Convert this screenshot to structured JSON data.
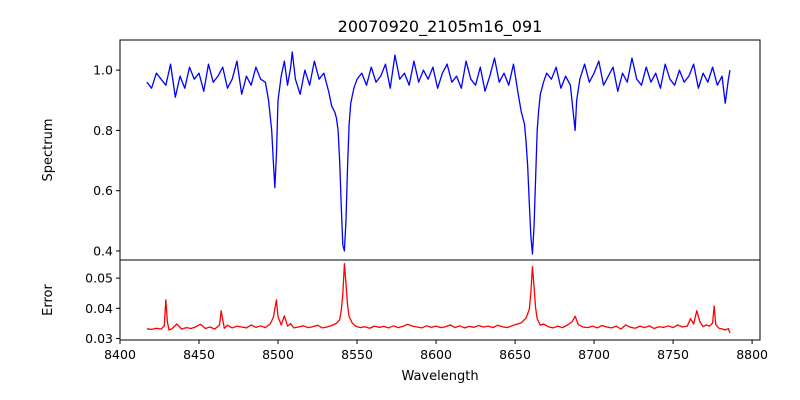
{
  "figure": {
    "title": "20070920_2105m16_091"
  },
  "chart_data": [
    {
      "type": "line",
      "panel": "top",
      "title": "20070920_2105m16_091",
      "xlabel": "",
      "ylabel": "Spectrum",
      "xlim": [
        8400,
        8805
      ],
      "ylim": [
        0.37,
        1.1
      ],
      "yticks": [
        0.4,
        0.6,
        0.8,
        1.0
      ],
      "ytick_labels": [
        "0.4",
        "0.6",
        "0.8",
        "1.0"
      ],
      "grid": false,
      "series": [
        {
          "color": "#0000ff",
          "x": [
            8417,
            8420,
            8423,
            8426,
            8429,
            8432,
            8435,
            8438,
            8441,
            8444,
            8447,
            8450,
            8453,
            8456,
            8459,
            8462,
            8465,
            8468,
            8471,
            8474,
            8477,
            8480,
            8483,
            8486,
            8489,
            8492,
            8494,
            8496,
            8497,
            8498,
            8499,
            8500,
            8502,
            8504,
            8506,
            8508,
            8509,
            8511,
            8514,
            8517,
            8520,
            8523,
            8526,
            8529,
            8532,
            8534,
            8536,
            8537,
            8538,
            8539,
            8540,
            8541,
            8542,
            8543,
            8544,
            8545,
            8546,
            8548,
            8550,
            8553,
            8556,
            8559,
            8562,
            8565,
            8568,
            8571,
            8574,
            8577,
            8580,
            8583,
            8586,
            8589,
            8592,
            8595,
            8598,
            8601,
            8604,
            8607,
            8610,
            8613,
            8616,
            8619,
            8622,
            8625,
            8628,
            8631,
            8634,
            8637,
            8640,
            8643,
            8646,
            8649,
            8652,
            8654,
            8656,
            8657,
            8658,
            8659,
            8660,
            8661,
            8662,
            8663,
            8664,
            8665,
            8666,
            8668,
            8670,
            8673,
            8676,
            8679,
            8682,
            8685,
            8687,
            8688,
            8689,
            8691,
            8694,
            8697,
            8700,
            8703,
            8706,
            8709,
            8712,
            8715,
            8718,
            8721,
            8724,
            8727,
            8730,
            8733,
            8736,
            8739,
            8742,
            8745,
            8748,
            8751,
            8754,
            8757,
            8760,
            8763,
            8766,
            8769,
            8772,
            8775,
            8778,
            8781,
            8783,
            8785,
            8786
          ],
          "y": [
            0.96,
            0.94,
            0.99,
            0.97,
            0.95,
            1.02,
            0.91,
            0.98,
            0.94,
            1.01,
            0.97,
            0.99,
            0.93,
            1.02,
            0.96,
            0.98,
            1.01,
            0.94,
            0.97,
            1.03,
            0.92,
            0.98,
            0.95,
            1.01,
            0.97,
            0.96,
            0.9,
            0.8,
            0.7,
            0.61,
            0.72,
            0.9,
            0.98,
            1.03,
            0.95,
            1.01,
            1.06,
            0.97,
            0.92,
            1.0,
            0.95,
            1.03,
            0.97,
            0.99,
            0.93,
            0.88,
            0.86,
            0.84,
            0.8,
            0.7,
            0.55,
            0.42,
            0.4,
            0.5,
            0.68,
            0.82,
            0.89,
            0.94,
            0.97,
            0.99,
            0.95,
            1.01,
            0.96,
            0.98,
            1.02,
            0.94,
            1.05,
            0.97,
            0.99,
            0.95,
            1.03,
            0.96,
            1.0,
            0.97,
            1.01,
            0.94,
            0.99,
            1.02,
            0.96,
            0.98,
            0.94,
            1.03,
            0.97,
            0.95,
            1.01,
            0.93,
            0.98,
            1.04,
            0.96,
            0.99,
            0.95,
            1.02,
            0.92,
            0.86,
            0.82,
            0.76,
            0.68,
            0.56,
            0.45,
            0.39,
            0.48,
            0.64,
            0.8,
            0.87,
            0.92,
            0.96,
            0.99,
            0.97,
            1.01,
            0.94,
            0.98,
            0.95,
            0.85,
            0.8,
            0.9,
            0.97,
            1.02,
            0.96,
            0.99,
            1.03,
            0.95,
            0.98,
            1.01,
            0.93,
            0.99,
            0.96,
            1.04,
            0.97,
            0.95,
            1.01,
            0.96,
            0.99,
            0.94,
            1.02,
            0.97,
            0.95,
            1.0,
            0.96,
            0.98,
            1.02,
            0.94,
            0.99,
            0.96,
            1.01,
            0.95,
            0.98,
            0.89,
            0.97,
            1.0
          ]
        }
      ]
    },
    {
      "type": "line",
      "panel": "bottom",
      "xlabel": "Wavelength",
      "ylabel": "Error",
      "xlim": [
        8400,
        8805
      ],
      "ylim": [
        0.0295,
        0.056
      ],
      "yticks": [
        0.03,
        0.04,
        0.05
      ],
      "ytick_labels": [
        "0.03",
        "0.04",
        "0.05"
      ],
      "xticks": [
        8400,
        8450,
        8500,
        8550,
        8600,
        8650,
        8700,
        8750,
        8800
      ],
      "xtick_labels": [
        "8400",
        "8450",
        "8500",
        "8550",
        "8600",
        "8650",
        "8700",
        "8750",
        "8800"
      ],
      "grid": false,
      "series": [
        {
          "color": "#ff0000",
          "x": [
            8417,
            8420,
            8423,
            8426,
            8428,
            8429,
            8430,
            8431,
            8433,
            8436,
            8439,
            8442,
            8445,
            8448,
            8451,
            8454,
            8457,
            8460,
            8463,
            8464,
            8465,
            8466,
            8468,
            8471,
            8474,
            8477,
            8480,
            8483,
            8486,
            8489,
            8492,
            8495,
            8497,
            8498,
            8499,
            8500,
            8502,
            8504,
            8506,
            8508,
            8510,
            8513,
            8516,
            8519,
            8522,
            8525,
            8528,
            8531,
            8534,
            8537,
            8539,
            8540,
            8541,
            8542,
            8543,
            8544,
            8545,
            8547,
            8549,
            8552,
            8555,
            8558,
            8561,
            8564,
            8567,
            8570,
            8573,
            8576,
            8579,
            8582,
            8585,
            8588,
            8591,
            8594,
            8597,
            8600,
            8603,
            8606,
            8609,
            8612,
            8615,
            8618,
            8621,
            8624,
            8627,
            8630,
            8633,
            8636,
            8639,
            8642,
            8645,
            8648,
            8651,
            8654,
            8657,
            8659,
            8660,
            8661,
            8662,
            8663,
            8664,
            8666,
            8668,
            8671,
            8674,
            8677,
            8680,
            8683,
            8686,
            8688,
            8690,
            8693,
            8696,
            8699,
            8702,
            8705,
            8708,
            8711,
            8714,
            8717,
            8720,
            8723,
            8726,
            8729,
            8732,
            8735,
            8738,
            8741,
            8744,
            8747,
            8750,
            8753,
            8756,
            8759,
            8761,
            8763,
            8765,
            8767,
            8769,
            8771,
            8773,
            8775,
            8776,
            8777,
            8779,
            8781,
            8783,
            8785,
            8786
          ],
          "y": [
            0.0332,
            0.033,
            0.0334,
            0.0331,
            0.0342,
            0.0428,
            0.0355,
            0.0328,
            0.0333,
            0.0348,
            0.0331,
            0.0336,
            0.0333,
            0.0339,
            0.0347,
            0.0333,
            0.0338,
            0.0331,
            0.0345,
            0.0392,
            0.0362,
            0.0334,
            0.0344,
            0.0335,
            0.0341,
            0.0338,
            0.0335,
            0.0345,
            0.0337,
            0.0342,
            0.0336,
            0.0348,
            0.0369,
            0.0398,
            0.0428,
            0.0372,
            0.0345,
            0.0375,
            0.0341,
            0.0349,
            0.0335,
            0.0338,
            0.0342,
            0.0336,
            0.0339,
            0.0344,
            0.0335,
            0.0338,
            0.0343,
            0.035,
            0.0362,
            0.0392,
            0.0446,
            0.0548,
            0.0482,
            0.041,
            0.0372,
            0.0351,
            0.0341,
            0.0336,
            0.0339,
            0.0334,
            0.0341,
            0.0337,
            0.034,
            0.0335,
            0.0342,
            0.0336,
            0.034,
            0.0347,
            0.0341,
            0.0338,
            0.0335,
            0.0342,
            0.0337,
            0.0341,
            0.0336,
            0.0339,
            0.0345,
            0.0336,
            0.0342,
            0.0335,
            0.034,
            0.0337,
            0.0343,
            0.0338,
            0.0341,
            0.0336,
            0.0344,
            0.0339,
            0.0336,
            0.0342,
            0.0347,
            0.0352,
            0.0368,
            0.0396,
            0.0452,
            0.0538,
            0.0472,
            0.0402,
            0.0365,
            0.0344,
            0.0348,
            0.0339,
            0.0335,
            0.0341,
            0.0336,
            0.0344,
            0.0355,
            0.0374,
            0.0346,
            0.0338,
            0.0336,
            0.0341,
            0.0335,
            0.0343,
            0.0338,
            0.0335,
            0.0341,
            0.0331,
            0.0345,
            0.0337,
            0.0334,
            0.0341,
            0.0336,
            0.0342,
            0.0333,
            0.0339,
            0.0337,
            0.0342,
            0.0336,
            0.0345,
            0.0338,
            0.0341,
            0.0366,
            0.0348,
            0.0392,
            0.0355,
            0.0339,
            0.0345,
            0.0341,
            0.0351,
            0.0408,
            0.0346,
            0.0334,
            0.0332,
            0.0328,
            0.0333,
            0.0318
          ]
        }
      ]
    }
  ]
}
